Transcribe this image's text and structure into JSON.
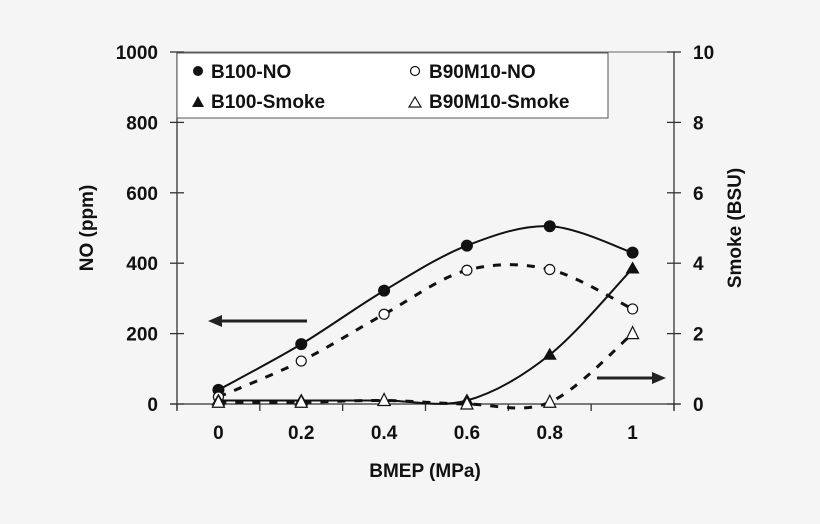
{
  "chart_data": {
    "type": "line",
    "title": "",
    "xlabel": "BMEP (MPa)",
    "ylabel": "NO (ppm)",
    "y2label": "Smoke (BSU)",
    "categories": [
      "0",
      "0.2",
      "0.4",
      "0.6",
      "0.8",
      "1"
    ],
    "x": [
      0,
      0.2,
      0.4,
      0.6,
      0.8,
      1.0
    ],
    "ylim": [
      0,
      1000
    ],
    "y2lim": [
      0,
      10
    ],
    "yticks": [
      "0",
      "200",
      "400",
      "600",
      "800",
      "1000"
    ],
    "y2ticks": [
      "0",
      "2",
      "4",
      "6",
      "8",
      "10"
    ],
    "grid": false,
    "legend_position": "top (inside plot area)",
    "series": [
      {
        "name": "B100-NO",
        "axis": "left",
        "marker": "filled-circle",
        "line": "solid",
        "values": [
          40,
          170,
          322,
          450,
          505,
          430
        ]
      },
      {
        "name": "B90M10-NO",
        "axis": "left",
        "marker": "open-circle",
        "line": "dashed",
        "values": [
          20,
          122,
          255,
          380,
          382,
          270
        ]
      },
      {
        "name": "B100-Smoke",
        "axis": "right",
        "marker": "filled-triangle",
        "line": "solid",
        "values": [
          0.1,
          0.1,
          0.1,
          0.1,
          1.4,
          3.85
        ]
      },
      {
        "name": "B90M10-Smoke",
        "axis": "right",
        "marker": "open-triangle",
        "line": "dashed",
        "values": [
          0.05,
          0.05,
          0.1,
          0.0,
          0.05,
          2.0
        ]
      }
    ],
    "annotations": [
      {
        "type": "arrow",
        "direction": "left",
        "meaning": "NO curves read on left axis"
      },
      {
        "type": "arrow",
        "direction": "right",
        "meaning": "Smoke curves read on right axis"
      }
    ]
  },
  "legend": {
    "items": [
      "B100-NO",
      "B90M10-NO",
      "B100-Smoke",
      "B90M10-Smoke"
    ]
  },
  "axes": {
    "x_title": "BMEP (MPa)",
    "y_title": "NO (ppm)",
    "y2_title": "Smoke (BSU)"
  }
}
